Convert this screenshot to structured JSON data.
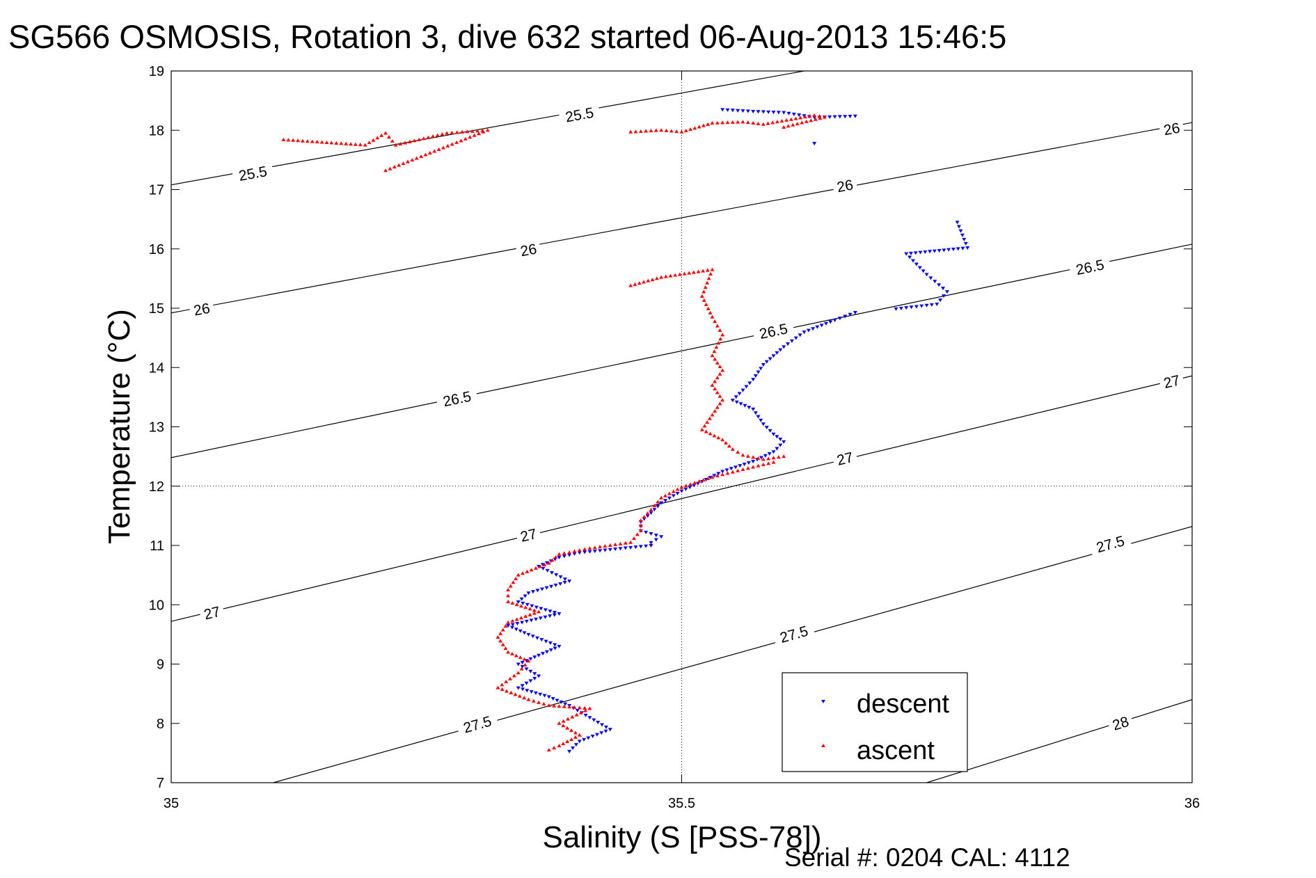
{
  "title": "SG566 OSMOSIS, Rotation 3, dive 632 started 06-Aug-2013 15:46:5",
  "footer": "Serial #: 0204  CAL: 4112",
  "colors": {
    "descent": "#0000ff",
    "ascent": "#ff0000",
    "axis": "#000000",
    "grid": "#000000"
  },
  "chart_data": {
    "type": "scatter",
    "title": "SG566 OSMOSIS, Rotation 3, dive 632 started 06-Aug-2013 15:46:5",
    "xlabel": "Salinity (S [PSS-78])",
    "ylabel": "Temperature (°C)",
    "xlim": [
      35,
      36
    ],
    "ylim": [
      7,
      19
    ],
    "xticks": [
      35,
      35.5,
      36
    ],
    "xtick_labels": [
      "35",
      "35.5",
      "36"
    ],
    "yticks": [
      7,
      8,
      9,
      10,
      11,
      12,
      13,
      14,
      15,
      16,
      17,
      18,
      19
    ],
    "ytick_labels": [
      "7",
      "8",
      "9",
      "10",
      "11",
      "12",
      "13",
      "14",
      "15",
      "16",
      "17",
      "18",
      "19"
    ],
    "grid": "x=35.5 and y=12 dotted lines",
    "legend": {
      "placement": "bottom-right",
      "entries": [
        "descent",
        "ascent"
      ]
    },
    "contours": [
      {
        "label": "25.5",
        "lines": [
          [
            [
              35,
              17.08
            ],
            [
              35.62,
              19
            ]
          ]
        ],
        "labels": [
          [
            35.08,
            17.27
          ],
          [
            35.4,
            18.26
          ]
        ]
      },
      {
        "label": "26",
        "lines": [
          [
            [
              35,
              14.92
            ],
            [
              36,
              18.13
            ]
          ]
        ],
        "labels": [
          [
            35.03,
            14.98
          ],
          [
            35.35,
            15.98
          ],
          [
            35.66,
            17.06
          ],
          [
            35.98,
            18.02
          ]
        ]
      },
      {
        "label": "26.5",
        "lines": [
          [
            [
              35,
              12.48
            ],
            [
              36,
              16.08
            ]
          ]
        ],
        "labels": [
          [
            35.28,
            13.47
          ],
          [
            35.59,
            14.61
          ],
          [
            35.9,
            15.69
          ]
        ]
      },
      {
        "label": "27",
        "lines": [
          [
            [
              35,
              9.72
            ],
            [
              36,
              13.86
            ]
          ]
        ],
        "labels": [
          [
            35.04,
            9.86
          ],
          [
            35.35,
            11.17
          ],
          [
            35.66,
            12.46
          ],
          [
            35.98,
            13.76
          ]
        ]
      },
      {
        "label": "27.5",
        "lines": [
          [
            [
              35.1,
              7
            ],
            [
              36,
              11.32
            ]
          ]
        ],
        "labels": [
          [
            35.3,
            7.98
          ],
          [
            35.61,
            9.5
          ],
          [
            35.92,
            11.02
          ]
        ]
      },
      {
        "label": "28",
        "lines": [
          [
            [
              35.74,
              7
            ],
            [
              36,
              8.4
            ]
          ]
        ],
        "labels": [
          [
            35.93,
            8.0
          ]
        ]
      }
    ],
    "series": [
      {
        "name": "descent",
        "marker": "triangle-down",
        "segments": [
          [
            [
              35.54,
              18.35
            ],
            [
              35.57,
              18.32
            ],
            [
              35.6,
              18.3
            ],
            [
              35.63,
              18.22
            ],
            [
              35.67,
              18.24
            ]
          ],
          [
            [
              35.63,
              17.78
            ]
          ],
          [
            [
              35.77,
              16.45
            ],
            [
              35.78,
              16.02
            ],
            [
              35.72,
              15.92
            ],
            [
              35.74,
              15.57
            ],
            [
              35.76,
              15.28
            ],
            [
              35.75,
              15.07
            ],
            [
              35.71,
              14.99
            ]
          ],
          [
            [
              35.67,
              14.93
            ],
            [
              35.65,
              14.8
            ],
            [
              35.62,
              14.6
            ],
            [
              35.6,
              14.35
            ],
            [
              35.58,
              14.05
            ],
            [
              35.57,
              13.8
            ],
            [
              35.56,
              13.62
            ],
            [
              35.55,
              13.45
            ],
            [
              35.57,
              13.3
            ],
            [
              35.58,
              13.05
            ],
            [
              35.59,
              12.88
            ],
            [
              35.6,
              12.75
            ],
            [
              35.59,
              12.58
            ],
            [
              35.57,
              12.42
            ],
            [
              35.54,
              12.25
            ],
            [
              35.52,
              12.08
            ],
            [
              35.5,
              11.92
            ],
            [
              35.48,
              11.72
            ],
            [
              35.47,
              11.55
            ],
            [
              35.46,
              11.4
            ],
            [
              35.46,
              11.25
            ],
            [
              35.48,
              11.15
            ],
            [
              35.47,
              11.05
            ]
          ],
          [
            [
              35.47,
              11.0
            ],
            [
              35.44,
              10.95
            ],
            [
              35.4,
              10.88
            ],
            [
              35.38,
              10.8
            ],
            [
              35.36,
              10.65
            ],
            [
              35.39,
              10.4
            ],
            [
              35.35,
              10.2
            ],
            [
              35.34,
              10.05
            ],
            [
              35.38,
              9.85
            ],
            [
              35.33,
              9.65
            ],
            [
              35.35,
              9.5
            ],
            [
              35.38,
              9.3
            ],
            [
              35.36,
              9.15
            ],
            [
              35.34,
              9.0
            ],
            [
              35.36,
              8.8
            ],
            [
              35.34,
              8.6
            ],
            [
              35.37,
              8.45
            ],
            [
              35.39,
              8.3
            ],
            [
              35.41,
              8.1
            ],
            [
              35.43,
              7.9
            ],
            [
              35.4,
              7.7
            ],
            [
              35.39,
              7.53
            ]
          ]
        ]
      },
      {
        "name": "ascent",
        "marker": "triangle-up",
        "segments": [
          [
            [
              35.11,
              17.84
            ],
            [
              35.19,
              17.75
            ],
            [
              35.21,
              17.95
            ],
            [
              35.22,
              17.75
            ],
            [
              35.27,
              17.95
            ],
            [
              35.31,
              18.0
            ],
            [
              35.21,
              17.32
            ]
          ],
          [
            [
              35.45,
              17.97
            ],
            [
              35.48,
              18.0
            ],
            [
              35.5,
              17.97
            ],
            [
              35.53,
              18.12
            ],
            [
              35.56,
              18.14
            ],
            [
              35.58,
              18.1
            ],
            [
              35.63,
              18.25
            ],
            [
              35.64,
              18.22
            ],
            [
              35.6,
              18.05
            ]
          ],
          [
            [
              35.45,
              15.38
            ],
            [
              35.48,
              15.52
            ],
            [
              35.53,
              15.65
            ],
            [
              35.52,
              15.2
            ],
            [
              35.53,
              14.85
            ],
            [
              35.54,
              14.55
            ],
            [
              35.53,
              14.2
            ],
            [
              35.54,
              13.95
            ],
            [
              35.53,
              13.7
            ],
            [
              35.54,
              13.45
            ],
            [
              35.53,
              13.2
            ],
            [
              35.52,
              12.95
            ],
            [
              35.54,
              12.78
            ],
            [
              35.55,
              12.62
            ],
            [
              35.56,
              12.52
            ],
            [
              35.58,
              12.45
            ],
            [
              35.6,
              12.5
            ]
          ],
          [
            [
              35.59,
              12.4
            ],
            [
              35.56,
              12.28
            ],
            [
              35.53,
              12.15
            ],
            [
              35.5,
              11.98
            ],
            [
              35.48,
              11.8
            ],
            [
              35.47,
              11.6
            ],
            [
              35.46,
              11.42
            ],
            [
              35.46,
              11.25
            ],
            [
              35.45,
              11.05
            ],
            [
              35.41,
              10.95
            ],
            [
              35.38,
              10.85
            ],
            [
              35.37,
              10.7
            ],
            [
              35.34,
              10.5
            ],
            [
              35.33,
              10.25
            ],
            [
              35.33,
              10.05
            ],
            [
              35.36,
              9.88
            ],
            [
              35.33,
              9.7
            ],
            [
              35.32,
              9.45
            ],
            [
              35.33,
              9.2
            ],
            [
              35.35,
              9.05
            ],
            [
              35.34,
              8.85
            ],
            [
              35.32,
              8.6
            ],
            [
              35.35,
              8.4
            ],
            [
              35.37,
              8.3
            ],
            [
              35.41,
              8.25
            ],
            [
              35.38,
              8.0
            ],
            [
              35.4,
              7.8
            ],
            [
              35.38,
              7.62
            ],
            [
              35.37,
              7.55
            ]
          ]
        ]
      }
    ]
  }
}
